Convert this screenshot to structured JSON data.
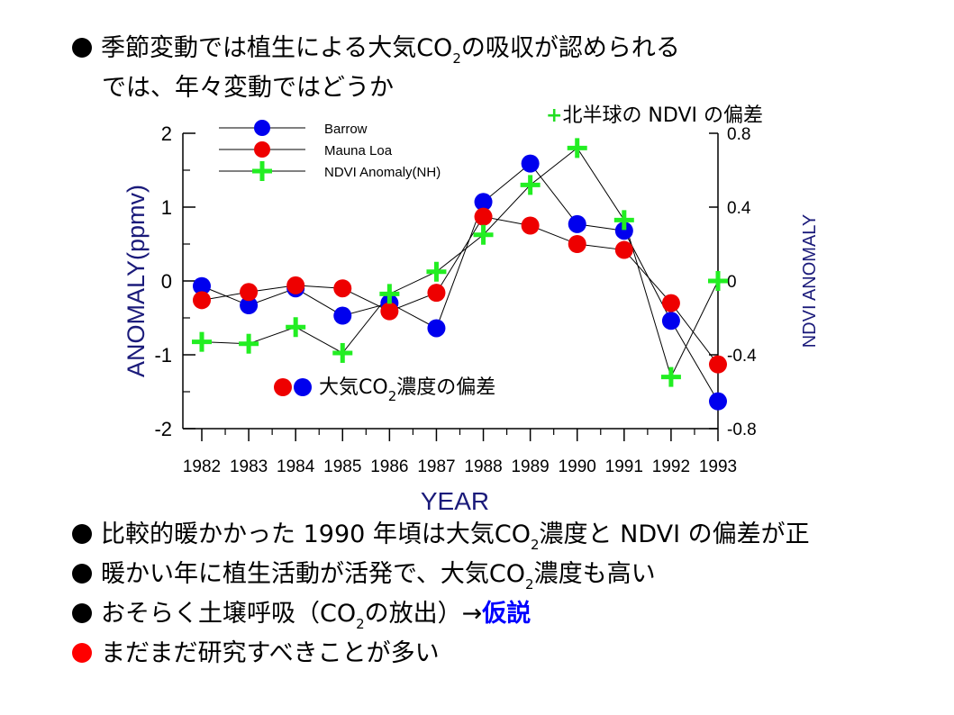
{
  "heading": {
    "line1": "季節変動では植生による大気",
    "co2": "CO",
    "sub2": "2",
    "line1_tail": "の吸収が認められる",
    "line2": "では、年々変動ではどうか"
  },
  "annotations": {
    "ndvi_plus": "+",
    "ndvi_label": "北半球の NDVI の偏差",
    "co2_label_pre": "大気",
    "co2": "CO",
    "sub2": "2",
    "co2_label_post": "濃度の偏差"
  },
  "bullets": [
    {
      "pre": "比較的暖かかった 1990 年頃は大気",
      "co2": "CO",
      "sub": "2",
      "post": "濃度と NDVI の偏差が正",
      "highlight": ""
    },
    {
      "pre": "暖かい年に植生活動が活発で、大気",
      "co2": "CO",
      "sub": "2",
      "post": "濃度も高い",
      "highlight": ""
    },
    {
      "pre": "おそらく土壌呼吸（",
      "co2": "CO",
      "sub": "2",
      "post": "の放出）→",
      "highlight": "仮説"
    },
    {
      "pre": "まだまだ研究すべきことが多い",
      "co2": "",
      "sub": "",
      "post": "",
      "highlight": ""
    }
  ],
  "colors": {
    "barrow": "#0000ee",
    "mauna_loa": "#ee0000",
    "ndvi": "#22ee22",
    "highlight": "#0000ff",
    "axis_right": "#1a1a7a",
    "axis_left": "#1a1a7a"
  },
  "chart_data": {
    "type": "line",
    "x": [
      1982,
      1983,
      1984,
      1985,
      1986,
      1987,
      1988,
      1989,
      1990,
      1991,
      1992,
      1993
    ],
    "tick_labels": [
      "1982",
      "1983",
      "1984",
      "1985",
      "1986",
      "1987",
      "1988",
      "1989",
      "1990",
      "1991",
      "1992",
      "1993"
    ],
    "xlabel": "YEAR",
    "ylabel": "ANOMALY(ppmv)",
    "ylabel_right": "NDVI ANOMALY",
    "ylim": [
      -2,
      2
    ],
    "yticks": [
      "2",
      "1",
      "0",
      "-1",
      "-2"
    ],
    "ylim_right": [
      -0.8,
      0.8
    ],
    "yticks_right": [
      "0.8",
      "0.4",
      "0",
      "-0.4",
      "-0.8"
    ],
    "legend_position": "top-left",
    "series": [
      {
        "name": "Barrow",
        "axis": "left",
        "marker": "circle",
        "values": [
          -0.07,
          -0.33,
          -0.1,
          -0.47,
          -0.3,
          -0.64,
          1.07,
          1.59,
          0.77,
          0.68,
          -0.54,
          -1.63
        ]
      },
      {
        "name": "Mauna Loa",
        "axis": "left",
        "marker": "circle",
        "values": [
          -0.26,
          -0.15,
          -0.06,
          -0.1,
          -0.41,
          -0.16,
          0.87,
          0.75,
          0.5,
          0.42,
          -0.3,
          -1.13
        ]
      },
      {
        "name": "NDVI Anomaly(NH)",
        "axis": "right",
        "marker": "plus",
        "values": [
          -0.33,
          -0.34,
          -0.25,
          -0.39,
          -0.07,
          0.05,
          0.25,
          0.52,
          0.72,
          0.33,
          -0.52,
          0.0
        ]
      }
    ]
  }
}
